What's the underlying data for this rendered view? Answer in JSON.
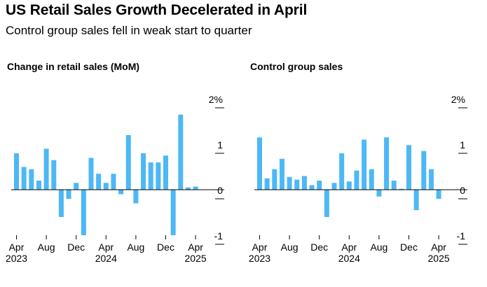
{
  "header": {
    "title": "US Retail Sales Growth Decelerated in April",
    "subtitle": "Control group sales fell in weak start to quarter"
  },
  "colors": {
    "bar": "#4db8f5",
    "axis": "#000000",
    "grid": "#d9d9d9"
  },
  "chart_data": [
    {
      "type": "bar",
      "title": "Change in retail sales (MoM)",
      "categories": [
        "Apr 2023",
        "May 2023",
        "Jun 2023",
        "Jul 2023",
        "Aug 2023",
        "Sep 2023",
        "Oct 2023",
        "Nov 2023",
        "Dec 2023",
        "Jan 2024",
        "Feb 2024",
        "Mar 2024",
        "Apr 2024",
        "May 2024",
        "Jun 2024",
        "Jul 2024",
        "Aug 2024",
        "Sep 2024",
        "Oct 2024",
        "Nov 2024",
        "Dec 2024",
        "Jan 2025",
        "Feb 2025",
        "Mar 2025",
        "Apr 2025"
      ],
      "values": [
        0.8,
        0.5,
        0.45,
        0.2,
        0.9,
        0.65,
        -0.6,
        -0.2,
        0.15,
        -1.0,
        0.7,
        0.35,
        0.15,
        0.35,
        -0.1,
        1.2,
        -0.3,
        0.8,
        0.6,
        0.6,
        0.75,
        -1.0,
        1.65,
        0.05,
        0.07
      ],
      "ylim": [
        -1.1,
        2.0
      ],
      "yticks": [
        "2%",
        "1",
        "0",
        "-1"
      ],
      "ytick_values": [
        2,
        1,
        0,
        -1
      ],
      "xticks": [
        {
          "month": "Apr",
          "year": "2023",
          "index": 0
        },
        {
          "month": "Aug",
          "year": "",
          "index": 4
        },
        {
          "month": "Dec",
          "year": "",
          "index": 8
        },
        {
          "month": "Apr",
          "year": "2024",
          "index": 12
        },
        {
          "month": "Aug",
          "year": "",
          "index": 16
        },
        {
          "month": "Dec",
          "year": "",
          "index": 20
        },
        {
          "month": "Apr",
          "year": "2025",
          "index": 24
        }
      ]
    },
    {
      "type": "bar",
      "title": "Control group sales",
      "categories": [
        "Apr 2023",
        "May 2023",
        "Jun 2023",
        "Jul 2023",
        "Aug 2023",
        "Sep 2023",
        "Oct 2023",
        "Nov 2023",
        "Dec 2023",
        "Jan 2024",
        "Feb 2024",
        "Mar 2024",
        "Apr 2024",
        "May 2024",
        "Jun 2024",
        "Jul 2024",
        "Aug 2024",
        "Sep 2024",
        "Oct 2024",
        "Nov 2024",
        "Dec 2024",
        "Jan 2025",
        "Feb 2025",
        "Mar 2025",
        "Apr 2025"
      ],
      "values": [
        1.15,
        0.25,
        0.45,
        0.68,
        0.28,
        0.22,
        0.3,
        0.1,
        0.2,
        -0.6,
        0.15,
        0.8,
        0.18,
        0.42,
        1.1,
        0.45,
        -0.15,
        1.15,
        0.2,
        0.02,
        0.98,
        -0.45,
        0.85,
        0.45,
        -0.2
      ],
      "ylim": [
        -1.1,
        2.0
      ],
      "yticks": [
        "2%",
        "1",
        "0",
        "-1"
      ],
      "ytick_values": [
        2,
        1,
        0,
        -1
      ],
      "xticks": [
        {
          "month": "Apr",
          "year": "2023",
          "index": 0
        },
        {
          "month": "Aug",
          "year": "",
          "index": 4
        },
        {
          "month": "Dec",
          "year": "",
          "index": 8
        },
        {
          "month": "Apr",
          "year": "2024",
          "index": 12
        },
        {
          "month": "Aug",
          "year": "",
          "index": 16
        },
        {
          "month": "Dec",
          "year": "",
          "index": 20
        },
        {
          "month": "Apr",
          "year": "2025",
          "index": 24
        }
      ]
    }
  ]
}
